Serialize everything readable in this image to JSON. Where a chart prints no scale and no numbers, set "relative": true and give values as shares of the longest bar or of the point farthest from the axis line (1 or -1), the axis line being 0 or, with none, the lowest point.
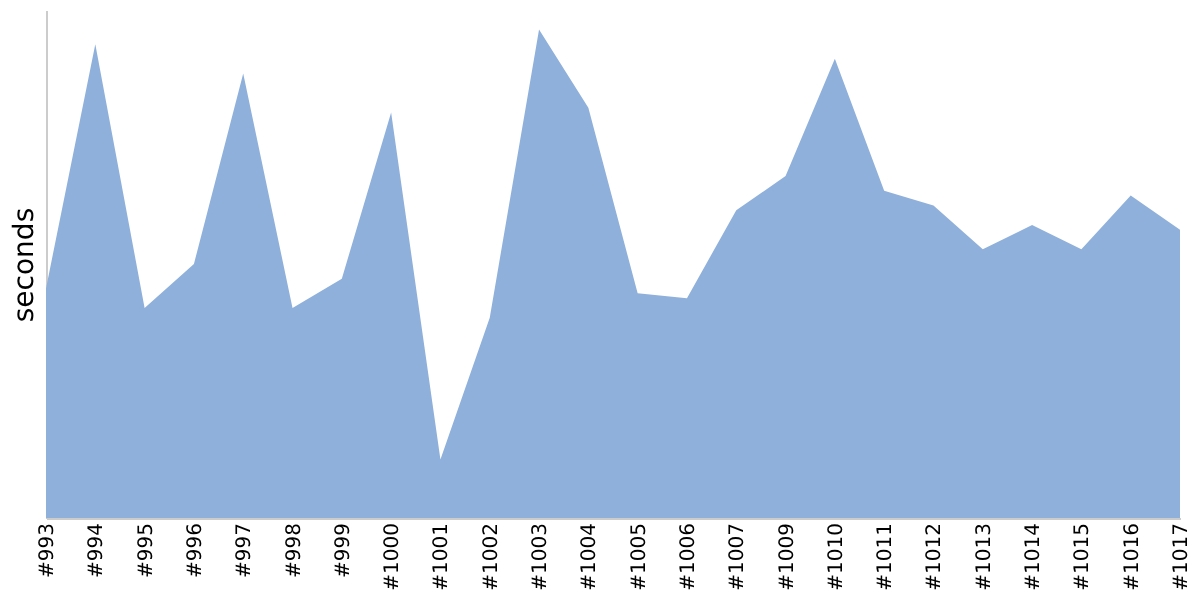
{
  "chart_data": {
    "type": "area",
    "ylabel": "seconds",
    "relative": true,
    "categories": [
      "#993",
      "#994",
      "#995",
      "#996",
      "#997",
      "#998",
      "#999",
      "#1000",
      "#1001",
      "#1002",
      "#1003",
      "#1004",
      "#1005",
      "#1006",
      "#1007",
      "#1009",
      "#1010",
      "#1011",
      "#1012",
      "#1013",
      "#1014",
      "#1015",
      "#1016",
      "#1017"
    ],
    "series": [
      {
        "color": "#8fb0da",
        "values": [
          0.47,
          0.97,
          0.43,
          0.52,
          0.91,
          0.43,
          0.49,
          0.83,
          0.12,
          0.41,
          1,
          0.84,
          0.46,
          0.45,
          0.63,
          0.7,
          0.94,
          0.67,
          0.64,
          0.55,
          0.6,
          0.55,
          0.66,
          0.59
        ]
      }
    ],
    "grid": false
  }
}
